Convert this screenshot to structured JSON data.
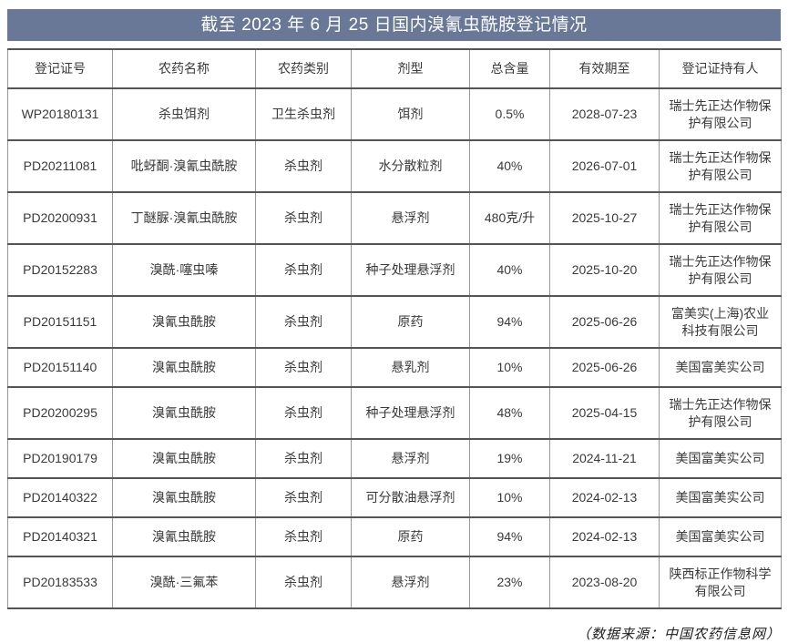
{
  "title": "截至 2023 年 6 月 25 日国内溴氰虫酰胺登记情况",
  "colors": {
    "banner_bg": "#687896",
    "banner_text": "#ffffff",
    "border_horizontal": "#555555",
    "border_vertical": "#999999",
    "body_text": "#3a3a3a"
  },
  "table": {
    "headers": [
      "登记证号",
      "农药名称",
      "农药类别",
      "剂型",
      "总含量",
      "有效期至",
      "登记证持有人"
    ],
    "rows": [
      {
        "reg_no": "WP20180131",
        "name": "杀虫饵剂",
        "category": "卫生杀虫剂",
        "formulation": "饵剂",
        "content": "0.5%",
        "valid_until": "2028-07-23",
        "holder": "瑞士先正达作物保护有限公司",
        "tall": true
      },
      {
        "reg_no": "PD20211081",
        "name": "吡蚜酮·溴氰虫酰胺",
        "category": "杀虫剂",
        "formulation": "水分散粒剂",
        "content": "40%",
        "valid_until": "2026-07-01",
        "holder": "瑞士先正达作物保护有限公司",
        "tall": true
      },
      {
        "reg_no": "PD20200931",
        "name": "丁醚脲·溴氰虫酰胺",
        "category": "杀虫剂",
        "formulation": "悬浮剂",
        "content": "480克/升",
        "valid_until": "2025-10-27",
        "holder": "瑞士先正达作物保护有限公司",
        "tall": true
      },
      {
        "reg_no": "PD20152283",
        "name": "溴酰·噻虫嗪",
        "category": "杀虫剂",
        "formulation": "种子处理悬浮剂",
        "content": "40%",
        "valid_until": "2025-10-20",
        "holder": "瑞士先正达作物保护有限公司",
        "tall": true
      },
      {
        "reg_no": "PD20151151",
        "name": "溴氰虫酰胺",
        "category": "杀虫剂",
        "formulation": "原药",
        "content": "94%",
        "valid_until": "2025-06-26",
        "holder": "富美实(上海)农业科技有限公司",
        "tall": true
      },
      {
        "reg_no": "PD20151140",
        "name": "溴氰虫酰胺",
        "category": "杀虫剂",
        "formulation": "悬乳剂",
        "content": "10%",
        "valid_until": "2025-06-26",
        "holder": "美国富美实公司",
        "tall": false
      },
      {
        "reg_no": "PD20200295",
        "name": "溴氰虫酰胺",
        "category": "杀虫剂",
        "formulation": "种子处理悬浮剂",
        "content": "48%",
        "valid_until": "2025-04-15",
        "holder": "瑞士先正达作物保护有限公司",
        "tall": true
      },
      {
        "reg_no": "PD20190179",
        "name": "溴氰虫酰胺",
        "category": "杀虫剂",
        "formulation": "悬浮剂",
        "content": "19%",
        "valid_until": "2024-11-21",
        "holder": "美国富美实公司",
        "tall": false
      },
      {
        "reg_no": "PD20140322",
        "name": "溴氰虫酰胺",
        "category": "杀虫剂",
        "formulation": "可分散油悬浮剂",
        "content": "10%",
        "valid_until": "2024-02-13",
        "holder": "美国富美实公司",
        "tall": false
      },
      {
        "reg_no": "PD20140321",
        "name": "溴氰虫酰胺",
        "category": "杀虫剂",
        "formulation": "原药",
        "content": "94%",
        "valid_until": "2024-02-13",
        "holder": "美国富美实公司",
        "tall": false
      },
      {
        "reg_no": "PD20183533",
        "name": "溴酰·三氟苯",
        "category": "杀虫剂",
        "formulation": "悬浮剂",
        "content": "23%",
        "valid_until": "2023-08-20",
        "holder": "陕西标正作物科学有限公司",
        "tall": true
      }
    ]
  },
  "footer": {
    "source_note": "（数据来源：中国农药信息网）"
  }
}
